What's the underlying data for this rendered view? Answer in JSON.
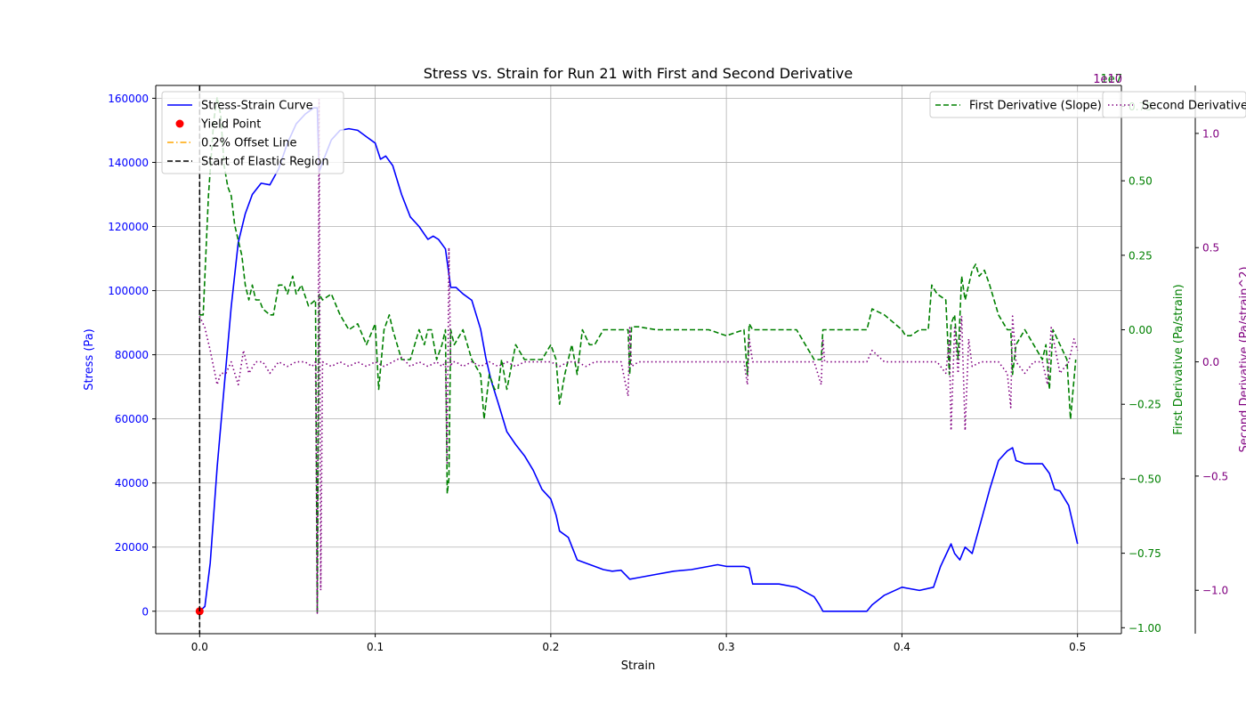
{
  "chart_data": {
    "type": "line",
    "title": "Stress vs. Strain for Run 21 with First and Second Derivative",
    "xlabel": "Strain",
    "xlim": [
      -0.025,
      0.525
    ],
    "xticks": [
      0.0,
      0.1,
      0.2,
      0.3,
      0.4,
      0.5
    ],
    "grid": true,
    "axes": {
      "left": {
        "label": "Stress (Pa)",
        "color": "#0000ff",
        "ylim": [
          -7000,
          164000
        ],
        "ticks": [
          0,
          20000,
          40000,
          60000,
          80000,
          100000,
          120000,
          140000,
          160000
        ]
      },
      "right1": {
        "label": "First Derivative (Pa/strain)",
        "color": "#008000",
        "ylim": [
          -1.02,
          0.82
        ],
        "ticks": [
          -1.0,
          -0.75,
          -0.5,
          -0.25,
          0.0,
          0.25,
          0.5,
          0.75
        ],
        "offset_text": "1e7"
      },
      "right2": {
        "label": "Second Derivative (Pa/strain^2)",
        "color": "#800080",
        "ylim": [
          -1.19,
          1.21
        ],
        "ticks": [
          -1.0,
          -0.5,
          0.0,
          0.5,
          1.0
        ],
        "offset_text": "1e10"
      }
    },
    "series": [
      {
        "name": "Stress-Strain Curve",
        "axis": "left",
        "color": "#0000ff",
        "style": "solid",
        "x": [
          0.0,
          0.003,
          0.006,
          0.01,
          0.014,
          0.018,
          0.022,
          0.026,
          0.03,
          0.035,
          0.04,
          0.045,
          0.05,
          0.055,
          0.06,
          0.065,
          0.067,
          0.068,
          0.07,
          0.075,
          0.08,
          0.085,
          0.09,
          0.095,
          0.1,
          0.103,
          0.106,
          0.11,
          0.115,
          0.12,
          0.125,
          0.13,
          0.133,
          0.136,
          0.14,
          0.143,
          0.146,
          0.15,
          0.155,
          0.16,
          0.163,
          0.166,
          0.17,
          0.175,
          0.18,
          0.185,
          0.19,
          0.195,
          0.2,
          0.203,
          0.205,
          0.21,
          0.215,
          0.22,
          0.225,
          0.23,
          0.235,
          0.24,
          0.245,
          0.25,
          0.26,
          0.27,
          0.28,
          0.29,
          0.295,
          0.3,
          0.305,
          0.31,
          0.313,
          0.315,
          0.32,
          0.33,
          0.34,
          0.345,
          0.35,
          0.353,
          0.355,
          0.356,
          0.36,
          0.37,
          0.38,
          0.383,
          0.39,
          0.4,
          0.405,
          0.41,
          0.418,
          0.422,
          0.428,
          0.43,
          0.433,
          0.436,
          0.44,
          0.445,
          0.45,
          0.455,
          0.46,
          0.463,
          0.465,
          0.47,
          0.475,
          0.48,
          0.484,
          0.487,
          0.49,
          0.495,
          0.5
        ],
        "y": [
          0,
          1500,
          15000,
          45000,
          70000,
          95000,
          115000,
          124000,
          130000,
          133500,
          133000,
          138000,
          146000,
          152000,
          155000,
          157000,
          157000,
          137000,
          140000,
          147000,
          150000,
          150500,
          150000,
          148000,
          146000,
          141000,
          142000,
          139000,
          130000,
          123000,
          120000,
          116000,
          117000,
          116000,
          113000,
          101000,
          101000,
          99000,
          97000,
          88000,
          79000,
          72000,
          65000,
          56000,
          52000,
          48500,
          44000,
          38000,
          35000,
          30000,
          25000,
          23000,
          16000,
          15000,
          14000,
          13000,
          12500,
          12800,
          10000,
          10500,
          11500,
          12500,
          13000,
          14000,
          14500,
          14000,
          14000,
          14000,
          13500,
          8500,
          8500,
          8500,
          7500,
          6000,
          4500,
          2000,
          0,
          0,
          0,
          0,
          0,
          2000,
          5000,
          7500,
          7000,
          6500,
          7500,
          14000,
          21000,
          18000,
          16000,
          20000,
          18000,
          28000,
          38000,
          47000,
          50000,
          51000,
          47000,
          46000,
          46000,
          46000,
          43000,
          38000,
          37500,
          33000,
          21000
        ]
      },
      {
        "name": "Yield Point",
        "axis": "left",
        "color": "#ff0000",
        "style": "marker",
        "x": [
          0.0
        ],
        "y": [
          0
        ]
      },
      {
        "name": "0.2% Offset Line",
        "axis": "left",
        "color": "#ffa500",
        "style": "dashdot",
        "x": [],
        "y": []
      },
      {
        "name": "Start of Elastic Region",
        "axis": "left",
        "color": "#000000",
        "style": "vline",
        "x": [
          0.0
        ]
      },
      {
        "name": "First Derivative (Slope)",
        "axis": "right1",
        "color": "#008000",
        "style": "dashed",
        "x": [
          0.0,
          0.002,
          0.005,
          0.008,
          0.01,
          0.012,
          0.014,
          0.016,
          0.018,
          0.02,
          0.022,
          0.024,
          0.026,
          0.028,
          0.03,
          0.032,
          0.034,
          0.036,
          0.04,
          0.042,
          0.045,
          0.048,
          0.05,
          0.053,
          0.055,
          0.058,
          0.062,
          0.066,
          0.067,
          0.068,
          0.07,
          0.075,
          0.08,
          0.085,
          0.09,
          0.095,
          0.1,
          0.102,
          0.105,
          0.108,
          0.11,
          0.115,
          0.12,
          0.125,
          0.128,
          0.13,
          0.132,
          0.135,
          0.138,
          0.14,
          0.141,
          0.142,
          0.143,
          0.145,
          0.15,
          0.155,
          0.16,
          0.162,
          0.165,
          0.168,
          0.17,
          0.172,
          0.175,
          0.18,
          0.185,
          0.19,
          0.195,
          0.2,
          0.203,
          0.205,
          0.208,
          0.212,
          0.215,
          0.218,
          0.222,
          0.225,
          0.23,
          0.235,
          0.24,
          0.244,
          0.245,
          0.246,
          0.25,
          0.26,
          0.27,
          0.28,
          0.29,
          0.3,
          0.31,
          0.312,
          0.313,
          0.315,
          0.32,
          0.33,
          0.34,
          0.345,
          0.35,
          0.354,
          0.355,
          0.357,
          0.36,
          0.37,
          0.38,
          0.383,
          0.39,
          0.4,
          0.402,
          0.405,
          0.41,
          0.415,
          0.417,
          0.42,
          0.425,
          0.427,
          0.428,
          0.43,
          0.432,
          0.434,
          0.436,
          0.438,
          0.44,
          0.442,
          0.444,
          0.447,
          0.45,
          0.455,
          0.46,
          0.462,
          0.463,
          0.465,
          0.47,
          0.475,
          0.48,
          0.482,
          0.484,
          0.486,
          0.49,
          0.494,
          0.496,
          0.499
        ],
        "y": [
          0.05,
          0.05,
          0.45,
          0.7,
          0.78,
          0.72,
          0.55,
          0.48,
          0.45,
          0.35,
          0.3,
          0.25,
          0.15,
          0.1,
          0.15,
          0.1,
          0.1,
          0.07,
          0.05,
          0.05,
          0.15,
          0.15,
          0.12,
          0.18,
          0.12,
          0.15,
          0.08,
          0.1,
          -0.95,
          0.12,
          0.1,
          0.12,
          0.05,
          0.0,
          0.02,
          -0.05,
          0.02,
          -0.2,
          0.0,
          0.05,
          0.0,
          -0.1,
          -0.1,
          0.0,
          -0.05,
          0.0,
          0.0,
          -0.1,
          -0.05,
          0.0,
          -0.55,
          -0.5,
          0.0,
          -0.05,
          0.0,
          -0.1,
          -0.15,
          -0.3,
          -0.15,
          -0.2,
          -0.2,
          -0.1,
          -0.2,
          -0.05,
          -0.1,
          -0.1,
          -0.1,
          -0.05,
          -0.1,
          -0.25,
          -0.15,
          -0.05,
          -0.15,
          0.0,
          -0.05,
          -0.05,
          0.0,
          0.0,
          0.0,
          0.0,
          -0.15,
          0.01,
          0.01,
          0.0,
          0.0,
          0.0,
          0.0,
          -0.02,
          0.0,
          -0.15,
          0.02,
          0.0,
          0.0,
          0.0,
          0.0,
          -0.05,
          -0.1,
          -0.1,
          0.0,
          0.0,
          0.0,
          0.0,
          0.0,
          0.07,
          0.05,
          0.0,
          -0.02,
          -0.02,
          0.0,
          0.0,
          0.15,
          0.12,
          0.1,
          -0.15,
          0.02,
          0.05,
          -0.1,
          0.18,
          0.1,
          0.15,
          0.2,
          0.22,
          0.18,
          0.2,
          0.15,
          0.05,
          0.0,
          0.0,
          -0.15,
          -0.05,
          0.0,
          -0.05,
          -0.1,
          -0.05,
          -0.2,
          0.0,
          -0.05,
          -0.1,
          -0.3,
          -0.1
        ]
      },
      {
        "name": "Second Derivative",
        "axis": "right2",
        "color": "#800080",
        "style": "dotted",
        "x": [
          0.0,
          0.003,
          0.006,
          0.01,
          0.012,
          0.015,
          0.018,
          0.022,
          0.025,
          0.028,
          0.032,
          0.036,
          0.04,
          0.045,
          0.05,
          0.055,
          0.06,
          0.064,
          0.066,
          0.067,
          0.068,
          0.069,
          0.07,
          0.075,
          0.08,
          0.085,
          0.09,
          0.095,
          0.1,
          0.105,
          0.11,
          0.115,
          0.12,
          0.125,
          0.13,
          0.135,
          0.138,
          0.14,
          0.141,
          0.142,
          0.143,
          0.144,
          0.146,
          0.15,
          0.155,
          0.16,
          0.165,
          0.17,
          0.175,
          0.18,
          0.185,
          0.19,
          0.195,
          0.2,
          0.205,
          0.21,
          0.215,
          0.22,
          0.225,
          0.23,
          0.24,
          0.244,
          0.245,
          0.246,
          0.25,
          0.26,
          0.27,
          0.28,
          0.29,
          0.3,
          0.31,
          0.312,
          0.313,
          0.315,
          0.32,
          0.33,
          0.34,
          0.35,
          0.354,
          0.355,
          0.356,
          0.36,
          0.37,
          0.38,
          0.383,
          0.39,
          0.4,
          0.41,
          0.42,
          0.425,
          0.427,
          0.428,
          0.43,
          0.432,
          0.434,
          0.436,
          0.438,
          0.44,
          0.445,
          0.45,
          0.455,
          0.46,
          0.462,
          0.463,
          0.465,
          0.47,
          0.475,
          0.48,
          0.483,
          0.485,
          0.49,
          0.495,
          0.498,
          0.5
        ],
        "y": [
          0.2,
          0.15,
          0.05,
          -0.1,
          -0.05,
          -0.05,
          0.0,
          -0.1,
          0.05,
          -0.05,
          0.0,
          0.0,
          -0.05,
          0.0,
          -0.02,
          0.0,
          0.0,
          -0.02,
          0.0,
          -1.1,
          1.15,
          -1.0,
          0.0,
          -0.02,
          0.0,
          -0.02,
          0.0,
          -0.02,
          0.0,
          -0.02,
          0.0,
          0.02,
          -0.02,
          0.0,
          -0.02,
          0.0,
          -0.02,
          0.0,
          -0.45,
          0.5,
          -0.02,
          0.0,
          0.0,
          -0.02,
          0.0,
          -0.02,
          0.0,
          -0.02,
          0.0,
          -0.02,
          0.0,
          0.0,
          0.0,
          0.0,
          -0.02,
          0.0,
          0.0,
          -0.02,
          0.0,
          0.0,
          0.0,
          -0.15,
          0.15,
          -0.02,
          0.0,
          0.0,
          0.0,
          0.0,
          0.0,
          0.0,
          0.0,
          -0.1,
          0.1,
          0.0,
          0.0,
          0.0,
          0.0,
          0.0,
          -0.1,
          0.1,
          0.0,
          0.0,
          0.0,
          0.0,
          0.05,
          0.0,
          0.0,
          0.0,
          0.0,
          -0.05,
          0.1,
          -0.3,
          0.15,
          -0.05,
          0.2,
          -0.3,
          0.1,
          -0.02,
          0.0,
          0.0,
          0.0,
          -0.05,
          -0.2,
          0.2,
          0.0,
          -0.05,
          0.0,
          0.0,
          -0.1,
          0.15,
          -0.05,
          0.0,
          0.1,
          0.05
        ]
      }
    ],
    "legend_left": [
      "Stress-Strain Curve",
      "Yield Point",
      "0.2% Offset Line",
      "Start of Elastic Region"
    ],
    "legend_right1": [
      "First Derivative (Slope)"
    ],
    "legend_right2": [
      "Second Derivative"
    ]
  }
}
